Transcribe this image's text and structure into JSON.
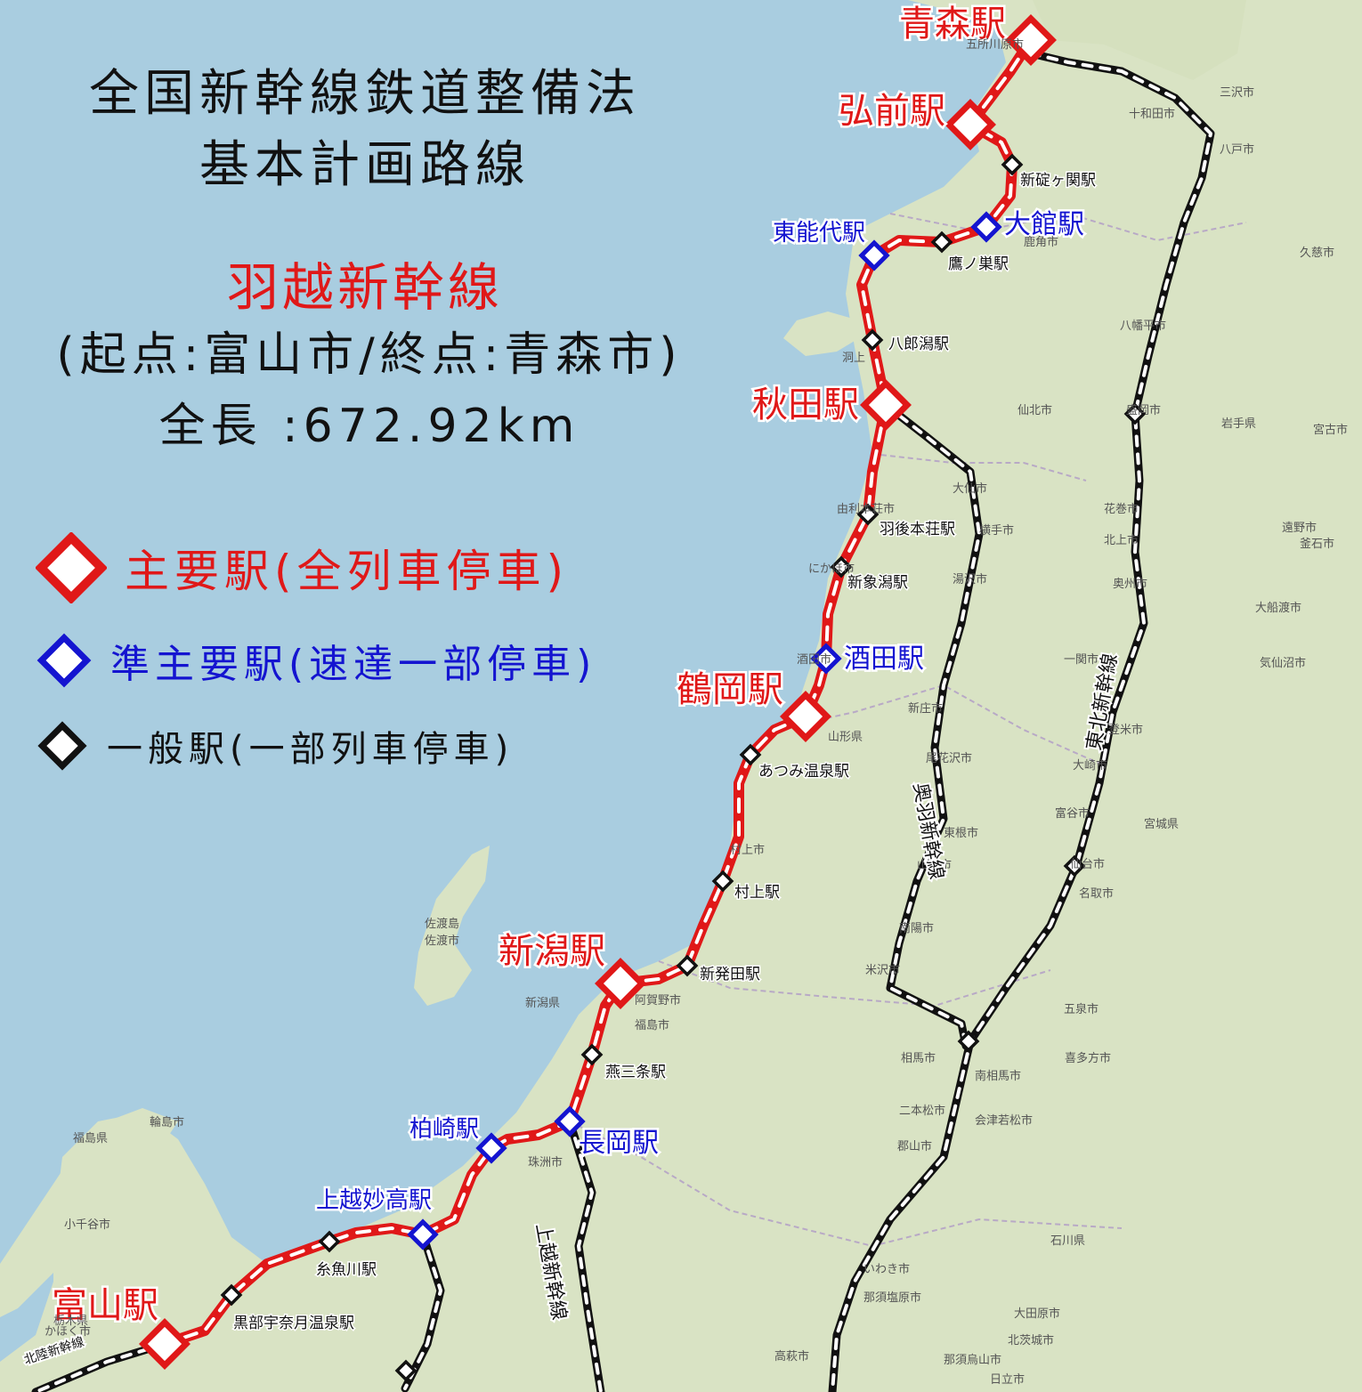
{
  "title": {
    "line1": "全国新幹線鉄道整備法",
    "line2": "基本計画路線"
  },
  "line_name": "羽越新幹線",
  "endpoints": "(起点:富山市/終点:青森市)",
  "length": "全長 :672.92km",
  "legend": {
    "main": "主要駅(全列車停車)",
    "semi": "準主要駅(速達一部停車)",
    "general": "一般駅(一部列車停車)"
  },
  "colors": {
    "main": "#e01818",
    "semi": "#1414d0",
    "general": "#111111",
    "sea": "#a9cde0",
    "land": "#d9e3c4"
  },
  "stations": [
    {
      "name": "青森駅",
      "type": "main"
    },
    {
      "name": "弘前駅",
      "type": "main"
    },
    {
      "name": "新碇ヶ関駅",
      "type": "general"
    },
    {
      "name": "大館駅",
      "type": "semi"
    },
    {
      "name": "鷹ノ巣駅",
      "type": "general"
    },
    {
      "name": "東能代駅",
      "type": "semi"
    },
    {
      "name": "八郎潟駅",
      "type": "general"
    },
    {
      "name": "秋田駅",
      "type": "main"
    },
    {
      "name": "羽後本荘駅",
      "type": "general"
    },
    {
      "name": "新象潟駅",
      "type": "general"
    },
    {
      "name": "酒田駅",
      "type": "semi"
    },
    {
      "name": "鶴岡駅",
      "type": "main"
    },
    {
      "name": "あつみ温泉駅",
      "type": "general"
    },
    {
      "name": "村上駅",
      "type": "general"
    },
    {
      "name": "新発田駅",
      "type": "general"
    },
    {
      "name": "新潟駅",
      "type": "main"
    },
    {
      "name": "燕三条駅",
      "type": "general"
    },
    {
      "name": "長岡駅",
      "type": "semi"
    },
    {
      "name": "柏崎駅",
      "type": "semi"
    },
    {
      "name": "上越妙高駅",
      "type": "semi"
    },
    {
      "name": "糸魚川駅",
      "type": "general"
    },
    {
      "name": "黒部宇奈月温泉駅",
      "type": "general"
    },
    {
      "name": "富山駅",
      "type": "main"
    }
  ],
  "other_lines": [
    "奥羽新幹線",
    "東北新幹線",
    "上越新幹線",
    "北陸新幹線"
  ],
  "place_labels": [
    "十和田市",
    "三沢市",
    "八戸市",
    "久慈市",
    "鹿角市",
    "八幡平市",
    "仙北市",
    "盛岡市",
    "岩手県",
    "宮古市",
    "大仙市",
    "由利本荘市",
    "横手市",
    "花巻市",
    "遠野市",
    "釜石市",
    "北上市",
    "奥州市",
    "湯沢市",
    "大船渡市",
    "にかほ市",
    "気仙沼市",
    "酒田市",
    "一関市",
    "登米市",
    "新庄市",
    "山形県",
    "尾花沢市",
    "大崎市",
    "宮城県",
    "富谷市",
    "東根市",
    "村上市",
    "山形市",
    "仙台市",
    "名取市",
    "佐渡島",
    "佐渡市",
    "新潟県",
    "南陽市",
    "米沢市",
    "阿賀野市",
    "福島市",
    "相馬市",
    "五泉市",
    "喜多方市",
    "南相馬市",
    "二本松市",
    "会津若松市",
    "郡山市",
    "福島県",
    "輪島市",
    "珠洲市",
    "小千谷市",
    "石川県",
    "いわき市",
    "那須塩原市",
    "大田原市",
    "北茨城市",
    "高萩市",
    "栃木県",
    "那須烏山市",
    "日立市",
    "かほく市",
    "五所川原市",
    "洞上"
  ]
}
